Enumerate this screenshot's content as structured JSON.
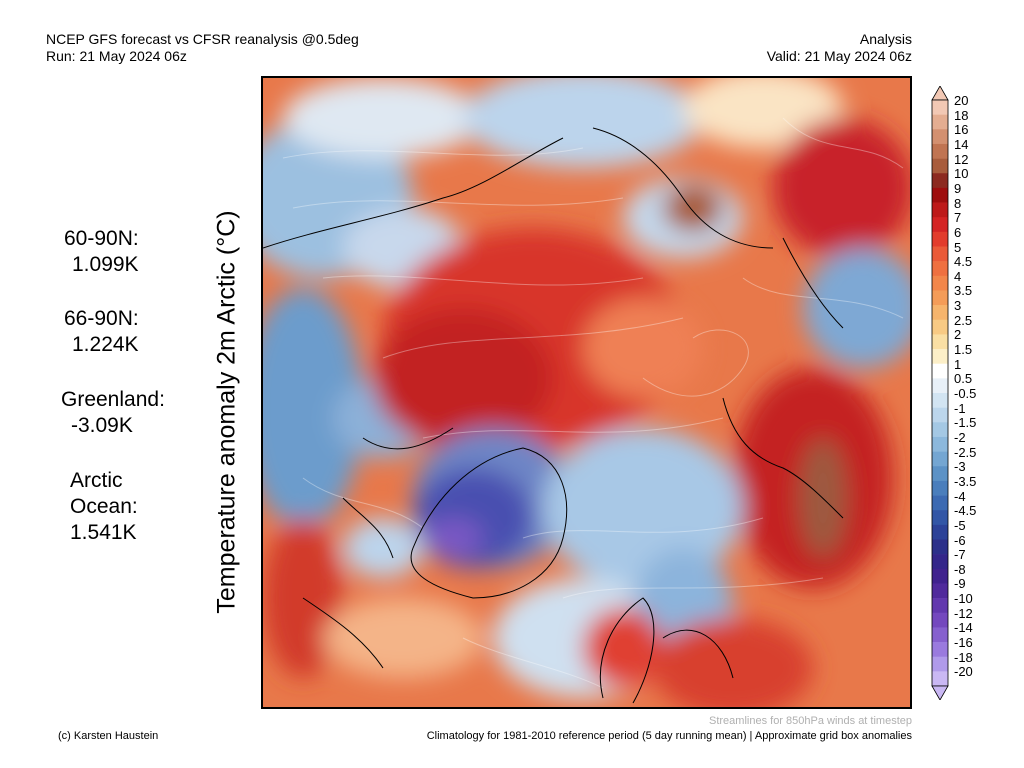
{
  "header": {
    "left_line1": "NCEP GFS forecast vs CFSR reanalysis @0.5deg",
    "left_line2": "Run: 21 May 2024 06z",
    "right_line1": "Analysis",
    "right_line2": "Valid: 21 May 2024 06z"
  },
  "vertical_title": "Temperature anomaly 2m Arctic (°C)",
  "stats": [
    {
      "label": "60-90N:",
      "value": "1.099K"
    },
    {
      "label": "66-90N:",
      "value": "1.224K"
    },
    {
      "label": "Greenland:",
      "value": "-3.09K"
    },
    {
      "label_line1": "Arctic",
      "label_line2": "Ocean:",
      "value": "1.541K"
    }
  ],
  "legend": {
    "labels": [
      "20",
      "18",
      "16",
      "14",
      "12",
      "10",
      "9",
      "8",
      "7",
      "6",
      "5",
      "4.5",
      "4",
      "3.5",
      "3",
      "2.5",
      "2",
      "1.5",
      "1",
      "0.5",
      "-0.5",
      "-1",
      "-1.5",
      "-2",
      "-2.5",
      "-3",
      "-3.5",
      "-4",
      "-4.5",
      "-5",
      "-6",
      "-7",
      "-8",
      "-9",
      "-10",
      "-12",
      "-14",
      "-16",
      "-18",
      "-20"
    ],
    "colors": [
      "#f2c8b4",
      "#e4ad91",
      "#d39070",
      "#c07452",
      "#a85c3c",
      "#8c2a20",
      "#9e0e0e",
      "#bd1a1a",
      "#d42424",
      "#e23c2c",
      "#ea5a38",
      "#ef7040",
      "#f2864a",
      "#f49c58",
      "#f6b46c",
      "#f8ca84",
      "#fadfa4",
      "#fcefc8",
      "#ffffff",
      "#e8f0f8",
      "#d2e4f2",
      "#bcd6ec",
      "#a4c8e4",
      "#8cb8dc",
      "#74a6d2",
      "#5c92c6",
      "#4a7ebc",
      "#3c6ab2",
      "#3256a6",
      "#2c4298",
      "#2c308a",
      "#34268a",
      "#40228e",
      "#502a9c",
      "#6238ae",
      "#7448be",
      "#8660ce",
      "#9a7ade",
      "#b09aea",
      "#cab8f4"
    ]
  },
  "footer": {
    "streamlines": "Streamlines for 850hPa winds at timestep",
    "credit": "(c) Karsten Haustein",
    "climatology": "Climatology for 1981-2010 reference period (5 day running mean) | Approximate grid box anomalies"
  }
}
